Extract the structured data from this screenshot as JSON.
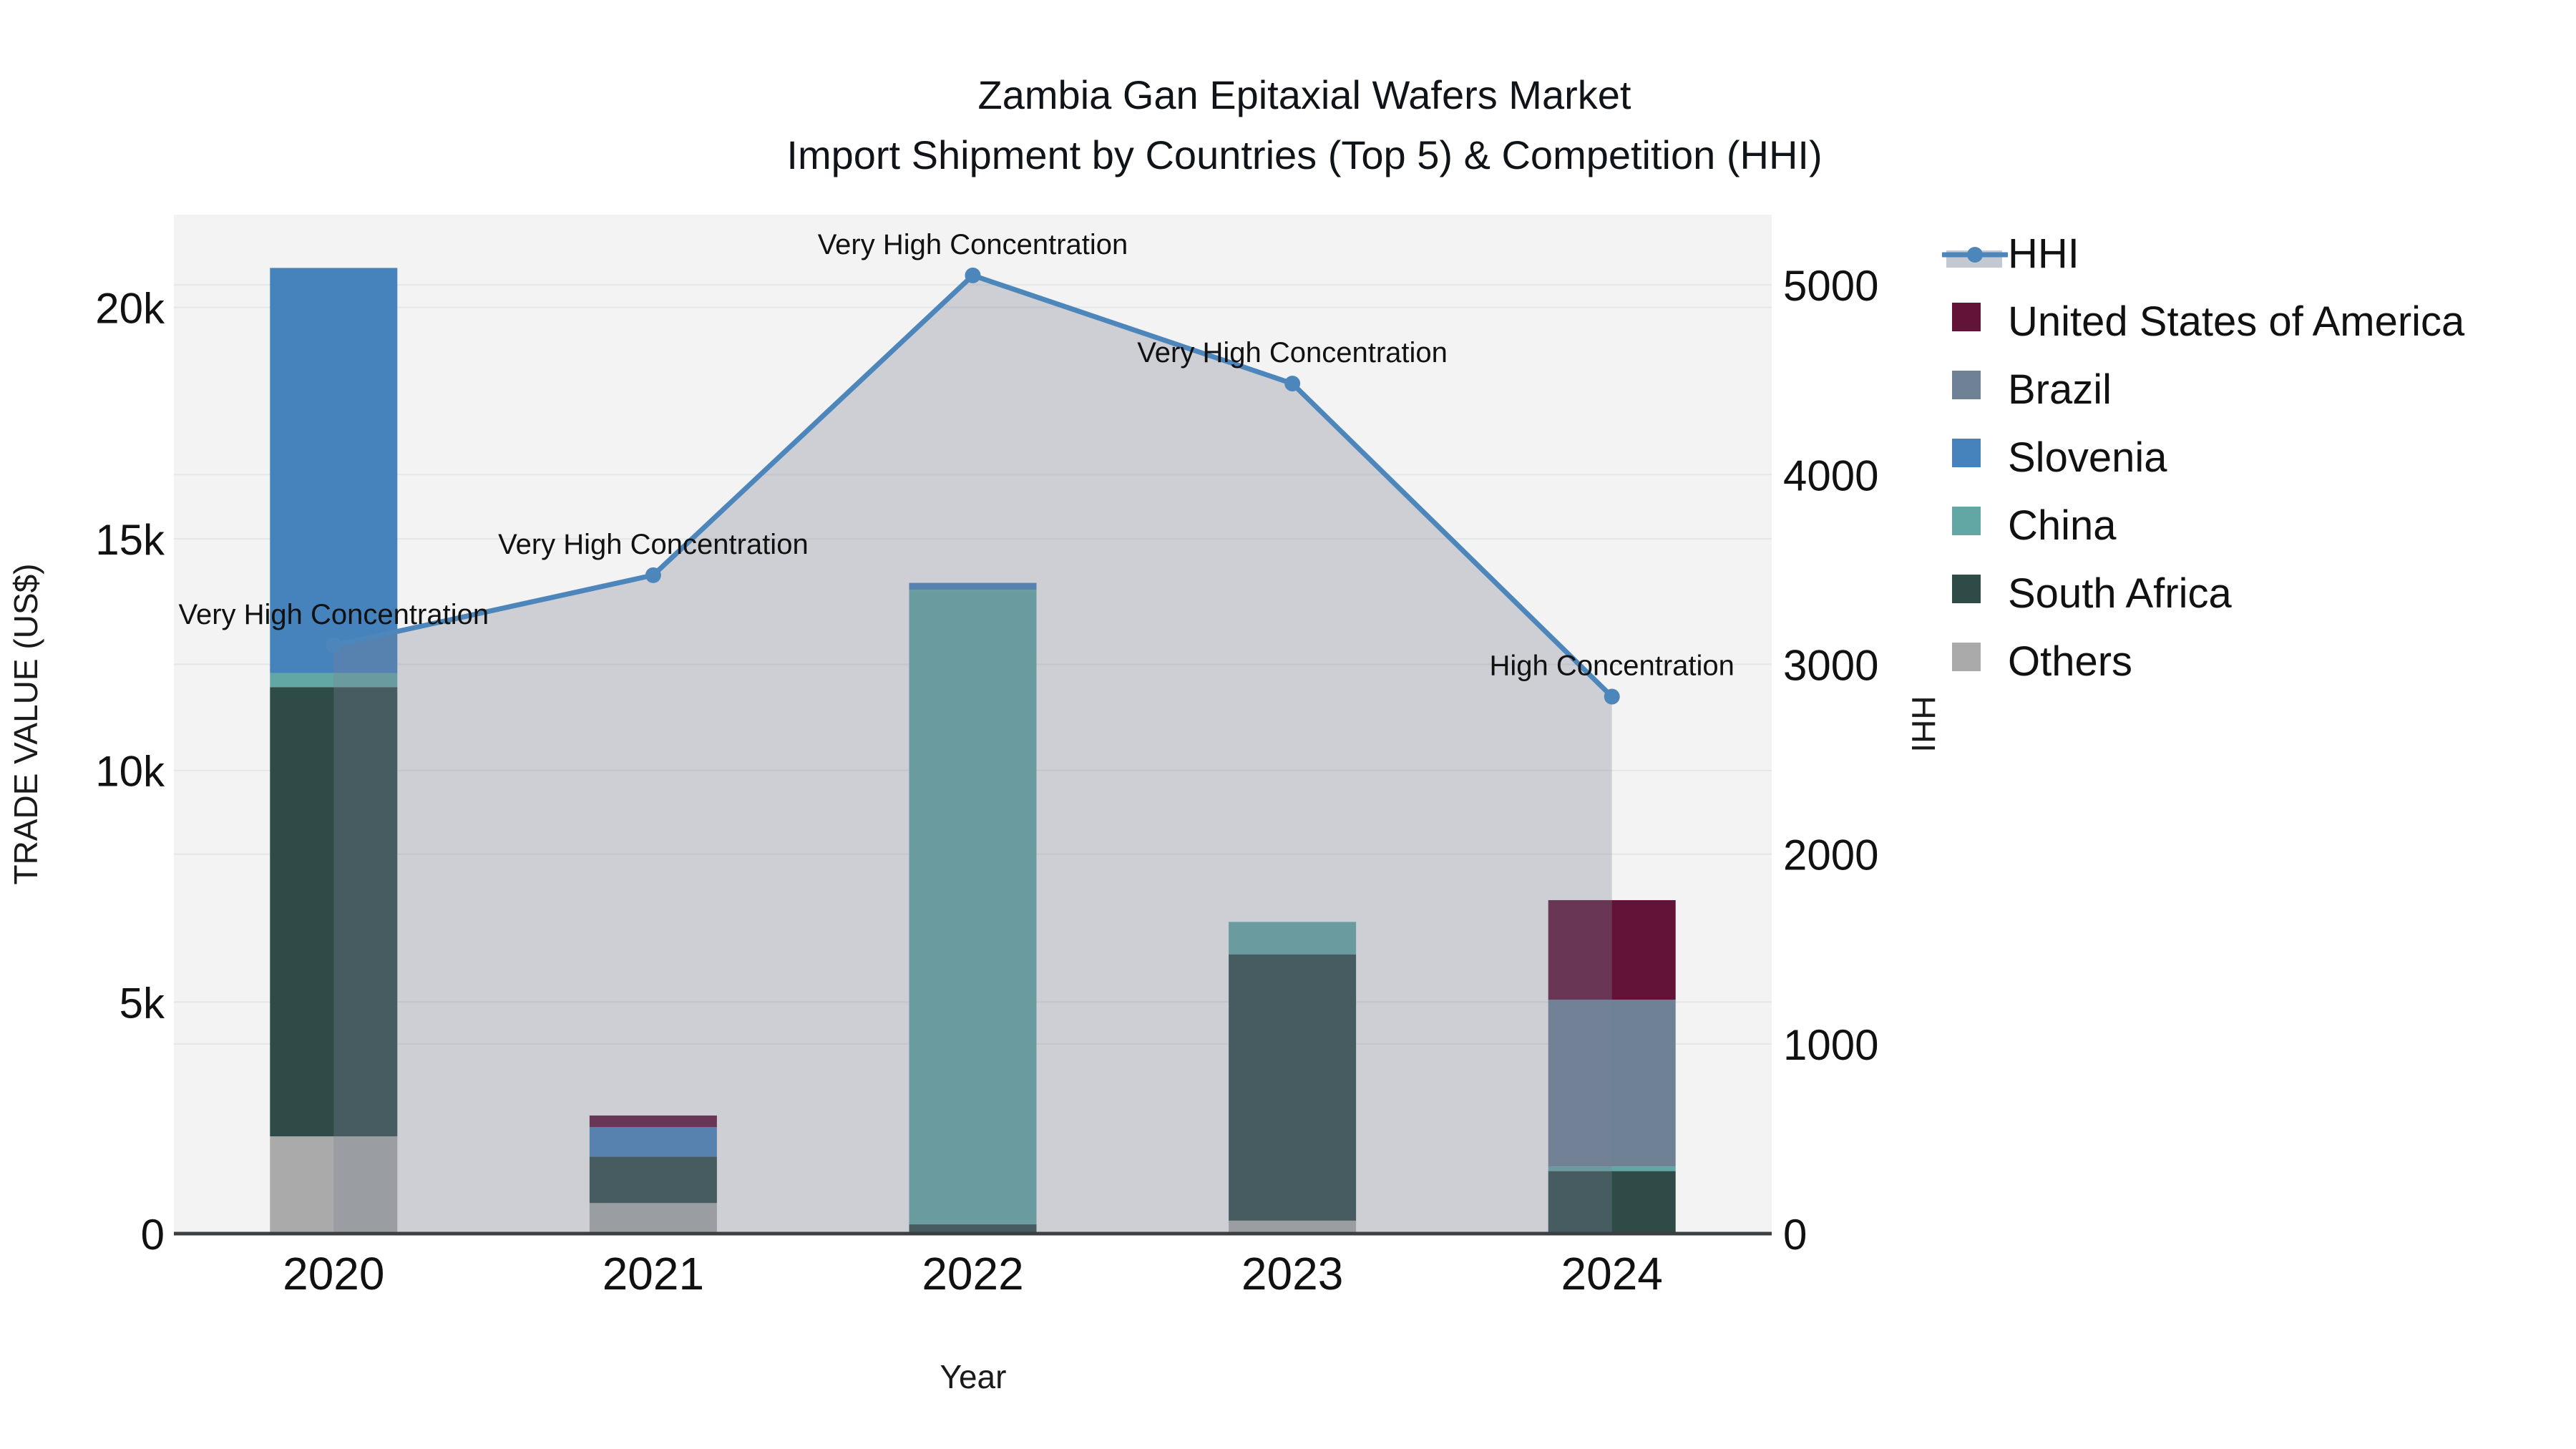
{
  "title": {
    "line1": "Zambia Gan Epitaxial Wafers Market",
    "line2": "Import Shipment by Countries (Top 5) & Competition (HHI)"
  },
  "axes": {
    "x": {
      "title": "Year",
      "ticks": [
        "2020",
        "2021",
        "2022",
        "2023",
        "2024"
      ]
    },
    "y_left": {
      "title": "TRADE VALUE (US$)",
      "ticks": [
        {
          "label": "0",
          "value": 0
        },
        {
          "label": "5k",
          "value": 5000
        },
        {
          "label": "10k",
          "value": 10000
        },
        {
          "label": "15k",
          "value": 15000
        },
        {
          "label": "20k",
          "value": 20000
        }
      ],
      "max": 22000
    },
    "y_right": {
      "title": "HHI",
      "ticks": [
        {
          "label": "0",
          "value": 0
        },
        {
          "label": "1000",
          "value": 1000
        },
        {
          "label": "2000",
          "value": 2000
        },
        {
          "label": "3000",
          "value": 3000
        },
        {
          "label": "4000",
          "value": 4000
        },
        {
          "label": "5000",
          "value": 5000
        }
      ],
      "max": 5370
    }
  },
  "legend": {
    "items": [
      {
        "label": "HHI",
        "type": "line"
      },
      {
        "label": "United States of America",
        "type": "swatch"
      },
      {
        "label": "Brazil",
        "type": "swatch"
      },
      {
        "label": "Slovenia",
        "type": "swatch"
      },
      {
        "label": "China",
        "type": "swatch"
      },
      {
        "label": "South Africa",
        "type": "swatch"
      },
      {
        "label": "Others",
        "type": "swatch"
      }
    ]
  },
  "colors": {
    "hhi_line": "#4d86ba",
    "area_fill": "rgba(125,132,148,0.32)",
    "plot_bg": "#f3f3f4",
    "grid": "#e4e6e7",
    "axis_line": "#3c3f42",
    "series": {
      "United States of America": "#621337",
      "Brazil": "#6e8195",
      "Slovenia": "#4682bb",
      "China": "#62a7a4",
      "South Africa": "#2e4b48",
      "Others": "#a9aaa9"
    }
  },
  "chart_data": {
    "type": "combo: stacked-bar + line-area",
    "categories": [
      "2020",
      "2021",
      "2022",
      "2023",
      "2024"
    ],
    "bar_unit": "US$",
    "stack_order_bottom_to_top": [
      "Others",
      "South Africa",
      "China",
      "Slovenia",
      "Brazil",
      "United States of America"
    ],
    "series": [
      {
        "name": "United States of America",
        "values": [
          0,
          250,
          0,
          0,
          2150
        ]
      },
      {
        "name": "Brazil",
        "values": [
          0,
          0,
          0,
          0,
          3600
        ]
      },
      {
        "name": "Slovenia",
        "values": [
          8750,
          640,
          150,
          0,
          0
        ]
      },
      {
        "name": "China",
        "values": [
          300,
          0,
          13700,
          700,
          100
        ]
      },
      {
        "name": "South Africa",
        "values": [
          9700,
          1000,
          200,
          5750,
          1350
        ]
      },
      {
        "name": "Others",
        "values": [
          2100,
          660,
          0,
          280,
          0
        ]
      }
    ],
    "line_series": {
      "name": "HHI",
      "values": [
        3100,
        3470,
        5050,
        4480,
        2830
      ],
      "axis": "right",
      "area_fill": true
    },
    "annotations": [
      {
        "x_index": 0,
        "text": "Very High Concentration"
      },
      {
        "x_index": 1,
        "text": "Very High Concentration"
      },
      {
        "x_index": 2,
        "text": "Very High Concentration"
      },
      {
        "x_index": 3,
        "text": "Very High Concentration"
      },
      {
        "x_index": 4,
        "text": "High Concentration"
      }
    ],
    "xlabel": "Year",
    "ylabel_left": "TRADE VALUE (US$)",
    "ylabel_right": "HHI",
    "ylim_left": [
      0,
      22000
    ],
    "ylim_right": [
      0,
      5370
    ],
    "grid": true,
    "legend_position": "right"
  }
}
